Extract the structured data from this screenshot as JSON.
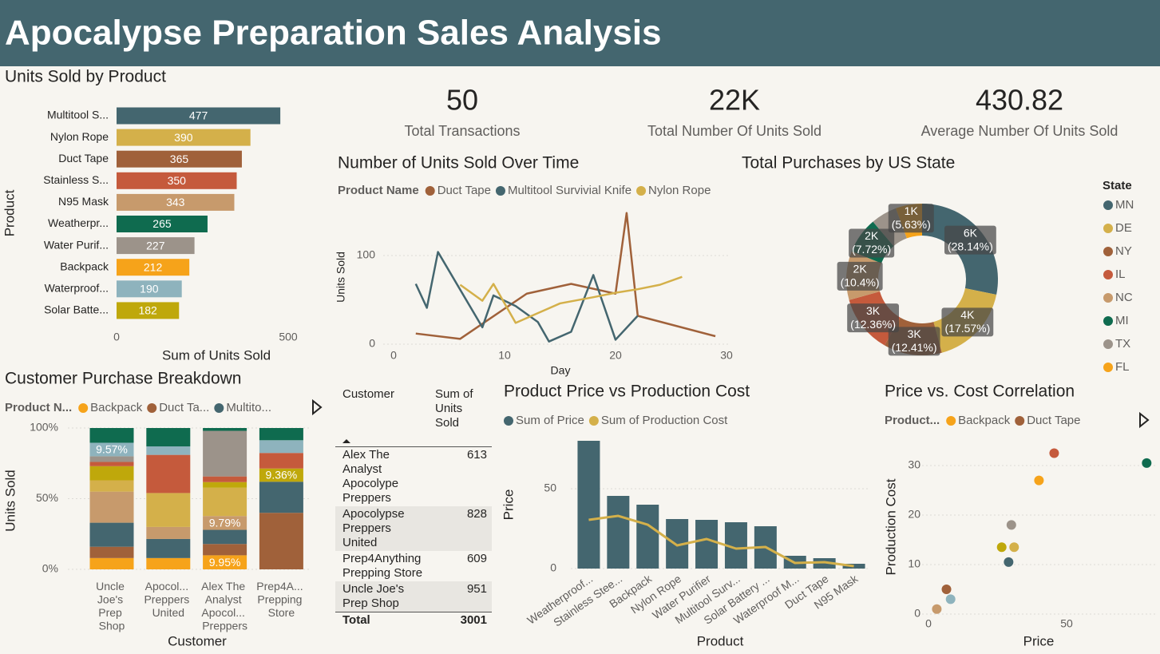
{
  "title": "Apocalypse Preparation Sales Analysis",
  "kpis": [
    {
      "value": 50,
      "label": "Total Transactions"
    },
    {
      "value": "22K",
      "label": "Total Number Of Units Sold"
    },
    {
      "value": 430.82,
      "label": "Average Number Of Units Sold"
    }
  ],
  "table": {
    "columns": [
      "Customer",
      "Sum of Units Sold"
    ],
    "rows": [
      [
        "Alex The Analyst Apocolype Preppers",
        613
      ],
      [
        "Apocolypse Preppers United",
        828
      ],
      [
        "Prep4Anything Prepping Store",
        609
      ],
      [
        "Uncle Joe's Prep Shop",
        951
      ]
    ],
    "total": [
      "Total",
      3001
    ]
  },
  "chart_data": [
    {
      "type": "bar",
      "orientation": "horizontal",
      "title": "Units Sold by Product",
      "categories": [
        "Multitool S...",
        "Nylon Rope",
        "Duct Tape",
        "Stainless S...",
        "N95 Mask",
        "Weatherpr...",
        "Water Purif...",
        "Backpack",
        "Waterproof...",
        "Solar Batte..."
      ],
      "values": [
        477,
        390,
        365,
        350,
        343,
        265,
        227,
        212,
        190,
        182
      ],
      "colors": [
        "#44666f",
        "#d4b04a",
        "#a0613a",
        "#c55a3c",
        "#c79a6c",
        "#0f6b4f",
        "#9c938a",
        "#f6a31a",
        "#8eb3bd",
        "#bfa80b"
      ],
      "xlim": [
        0,
        500
      ],
      "xticks": [
        0,
        500
      ],
      "x_label": "Sum of Units Sold",
      "y_label": "Product"
    },
    {
      "type": "line",
      "title": "Number of Units Sold Over Time",
      "legend_title": "Product Name",
      "series": [
        {
          "name": "Duct Tape",
          "color": "#a0613a",
          "x": [
            2,
            6,
            12,
            16,
            20,
            21,
            22,
            29
          ],
          "values": [
            12,
            6,
            57,
            68,
            57,
            148,
            32,
            9
          ]
        },
        {
          "name": "Multitool Survivial Knife",
          "color": "#44666f",
          "x": [
            2,
            3,
            4,
            8,
            9,
            11,
            13,
            14,
            16,
            18,
            20,
            22
          ],
          "values": [
            68,
            41,
            104,
            19,
            55,
            43,
            25,
            3,
            14,
            78,
            5,
            32
          ]
        },
        {
          "name": "Nylon Rope",
          "color": "#d4b04a",
          "x": [
            6,
            8,
            9,
            11,
            13,
            15,
            18,
            20,
            22,
            24,
            26
          ],
          "values": [
            67,
            49,
            68,
            24,
            35,
            46,
            53,
            58,
            62,
            67,
            76
          ]
        }
      ],
      "xlim": [
        0,
        30
      ],
      "xticks": [
        0,
        10,
        20,
        30
      ],
      "ylim": [
        0,
        150
      ],
      "yticks": [
        0,
        100
      ],
      "grid": true,
      "x_label": "Day",
      "y_label": "Units Sold"
    },
    {
      "type": "donut",
      "title": "Total Purchases by US State",
      "legend_title": "State",
      "categories": [
        "MN",
        "DE",
        "NY",
        "IL",
        "NC",
        "MI",
        "TX",
        "FL"
      ],
      "values": [
        28.14,
        17.57,
        12.41,
        12.36,
        10.4,
        7.72,
        5.57,
        5.63
      ],
      "amount_labels": [
        "6K",
        "4K",
        "3K",
        "3K",
        "2K",
        "2K",
        null,
        "1K"
      ],
      "value_labels": [
        "(28.14%)",
        "(17.57%)",
        "(12.41%)",
        "(12.36%)",
        "(10.4%)",
        "(7.72%)",
        null,
        "(5.63%)"
      ],
      "colors": [
        "#44666f",
        "#d4b04a",
        "#a0613a",
        "#c55a3c",
        "#c79a6c",
        "#0f6b4f",
        "#9c938a",
        "#f6a31a"
      ]
    },
    {
      "type": "stacked_bar",
      "title": "Customer Purchase Breakdown",
      "legend_title": "Product N...",
      "categories": [
        "Uncle Joe's Prep Shop",
        "Apocol... Preppers United",
        "Alex The Analyst Apocol... Preppers",
        "Prep4A... Prepping Store"
      ],
      "series": [
        {
          "name": "Backpack",
          "color": "#f6a31a",
          "values": [
            8,
            8,
            9.95,
            0
          ],
          "value_labels": [
            null,
            null,
            "9.95%",
            null
          ]
        },
        {
          "name": "Duct Ta...",
          "color": "#a0613a",
          "values": [
            8,
            0,
            8,
            40
          ]
        },
        {
          "name": "Multito...",
          "color": "#44666f",
          "values": [
            17,
            13.5,
            10,
            22
          ]
        },
        {
          "color": "#c79a6c",
          "values": [
            22,
            8.5,
            9.79,
            0
          ],
          "value_labels": [
            null,
            null,
            "9.79%",
            null
          ]
        },
        {
          "color": "#d4b04a",
          "values": [
            8,
            24,
            20,
            0
          ]
        },
        {
          "color": "#bfa80b",
          "values": [
            10,
            0,
            4,
            9.36
          ],
          "value_labels": [
            null,
            null,
            null,
            "9.36%"
          ]
        },
        {
          "color": "#c55a3c",
          "values": [
            3,
            27,
            4,
            11
          ]
        },
        {
          "color": "#9c938a",
          "values": [
            4,
            0,
            32.26,
            0
          ]
        },
        {
          "color": "#8eb3bd",
          "values": [
            9.57,
            6,
            0,
            9
          ],
          "value_labels": [
            "9.57%",
            null,
            null,
            null
          ]
        },
        {
          "color": "#0f6b4f",
          "values": [
            10.43,
            13,
            2,
            8.64
          ]
        }
      ],
      "ylim": [
        0,
        100
      ],
      "yticks": [
        {
          "value": 0,
          "label": "0%"
        },
        {
          "value": 50,
          "label": "50%"
        },
        {
          "value": 100,
          "label": "100%"
        }
      ],
      "grid": true,
      "x_label": "Customer",
      "y_label": "Units Sold"
    },
    {
      "type": "bar_line",
      "title": "Product Price vs Production Cost",
      "categories": [
        "Weatherproof...",
        "Stainless Stee...",
        "Backpack",
        "Nylon Rope",
        "Water Purifier",
        "Multitool Surv...",
        "Solar Battery ...",
        "Waterproof M...",
        "Duct Tape",
        "N95 Mask"
      ],
      "series": [
        {
          "name": "Sum of Price",
          "color": "#44666f",
          "type": "bar",
          "values": [
            80,
            45.5,
            40,
            31,
            30.5,
            29,
            26.5,
            8,
            6.5,
            3
          ]
        },
        {
          "name": "Sum of Production Cost",
          "color": "#d4b04a",
          "type": "line",
          "values": [
            30.5,
            33,
            27.5,
            14.5,
            18.5,
            12.5,
            13.5,
            3.5,
            4,
            1.5
          ]
        }
      ],
      "ylim": [
        0,
        80
      ],
      "yticks": [
        0,
        50
      ],
      "grid": true,
      "x_label": "Product",
      "y_label": "Price"
    },
    {
      "type": "scatter",
      "title": "Price vs. Cost Correlation",
      "legend_title": "Product...",
      "series": [
        {
          "name": "Backpack",
          "color": "#f6a31a",
          "x": [
            40
          ],
          "values": [
            27
          ]
        },
        {
          "name": "Duct Tape",
          "color": "#a0613a",
          "x": [
            6.5
          ],
          "values": [
            5
          ]
        },
        {
          "color": "#0f6b4f",
          "x": [
            79
          ],
          "values": [
            30.5
          ]
        },
        {
          "color": "#c55a3c",
          "x": [
            45.5
          ],
          "values": [
            32.5
          ]
        },
        {
          "color": "#9c938a",
          "x": [
            30
          ],
          "values": [
            18
          ]
        },
        {
          "color": "#d4b04a",
          "x": [
            31
          ],
          "values": [
            13.5
          ]
        },
        {
          "color": "#bfa80b",
          "x": [
            26.5
          ],
          "values": [
            13.5
          ]
        },
        {
          "color": "#44666f",
          "x": [
            29
          ],
          "values": [
            10.5
          ]
        },
        {
          "color": "#8eb3bd",
          "x": [
            8
          ],
          "values": [
            3
          ]
        },
        {
          "color": "#c79a6c",
          "x": [
            3
          ],
          "values": [
            1
          ]
        }
      ],
      "xlim": [
        -4,
        82
      ],
      "xticks": [
        0,
        50
      ],
      "ylim": [
        -1,
        33
      ],
      "yticks": [
        0,
        10,
        20,
        30
      ],
      "grid": true,
      "x_label": "Price",
      "y_label": "Production Cost"
    }
  ]
}
